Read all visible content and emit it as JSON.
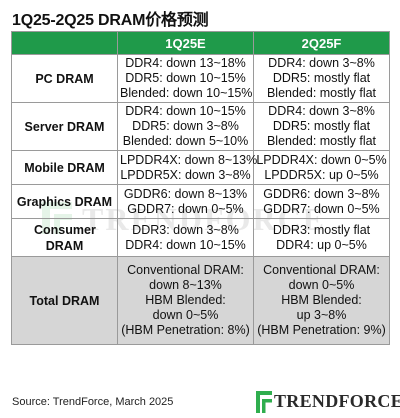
{
  "title": "1Q25-2Q25 DRAM价格预测",
  "columns": [
    "",
    "1Q25E",
    "2Q25F"
  ],
  "rows": [
    {
      "label": "PC DRAM",
      "q1": [
        "DDR4: down 13~18%",
        "DDR5: down 10~15%",
        "Blended: down 10~15%"
      ],
      "q2": [
        "DDR4: down 3~8%",
        "DDR5: mostly flat",
        "Blended: mostly flat"
      ]
    },
    {
      "label": "Server DRAM",
      "q1": [
        "DDR4: down 10~15%",
        "DDR5: down 3~8%",
        "Blended: down 5~10%"
      ],
      "q2": [
        "DDR4: down 3~8%",
        "DDR5: mostly flat",
        "Blended: mostly flat"
      ]
    },
    {
      "label": "Mobile DRAM",
      "q1": [
        "LPDDR4X: down 8~13%",
        "LPDDR5X: down 3~8%"
      ],
      "q2": [
        "LPDDR4X: down 0~5%",
        "LPDDR5X: up 0~5%"
      ]
    },
    {
      "label": "Graphics DRAM",
      "q1": [
        "GDDR6: down 8~13%",
        "GDDR7: down 0~5%"
      ],
      "q2": [
        "GDDR6: down 3~8%",
        "GDDR7: down 0~5%"
      ]
    },
    {
      "label": "Consumer DRAM",
      "q1": [
        "DDR3: down 3~8%",
        "DDR4: down 10~15%"
      ],
      "q2": [
        "DDR3: mostly flat",
        "DDR4: up 0~5%"
      ]
    },
    {
      "label": "Total DRAM",
      "q1": [
        "Conventional DRAM:",
        "down 8~13%",
        "HBM Blended:",
        "down 0~5%",
        "(HBM Penetration: 8%)"
      ],
      "q2": [
        "Conventional DRAM:",
        "down 0~5%",
        "HBM Blended:",
        "up 3~8%",
        "(HBM Penetration: 9%)"
      ]
    }
  ],
  "source": "Source: TrendForce, March 2025",
  "logo": {
    "text": "TRENDFORCE"
  },
  "watermark": {
    "text": "TRENDFORCE"
  },
  "colors": {
    "header_green": "#1f9a4a",
    "total_row_gray": "#d6d6d6",
    "logo_green": "#2fae4e"
  },
  "chart_data": {
    "type": "table",
    "title": "1Q25-2Q25 DRAM价格预测",
    "columns": [
      "",
      "1Q25E",
      "2Q25F"
    ],
    "rows": [
      [
        "PC DRAM",
        "DDR4: down 13~18% / DDR5: down 10~15% / Blended: down 10~15%",
        "DDR4: down 3~8% / DDR5: mostly flat / Blended: mostly flat"
      ],
      [
        "Server DRAM",
        "DDR4: down 10~15% / DDR5: down 3~8% / Blended: down 5~10%",
        "DDR4: down 3~8% / DDR5: mostly flat / Blended: mostly flat"
      ],
      [
        "Mobile DRAM",
        "LPDDR4X: down 8~13% / LPDDR5X: down 3~8%",
        "LPDDR4X: down 0~5% / LPDDR5X: up 0~5%"
      ],
      [
        "Graphics DRAM",
        "GDDR6: down 8~13% / GDDR7: down 0~5%",
        "GDDR6: down 3~8% / GDDR7: down 0~5%"
      ],
      [
        "Consumer DRAM",
        "DDR3: down 3~8% / DDR4: down 10~15%",
        "DDR3: mostly flat / DDR4: up 0~5%"
      ],
      [
        "Total DRAM",
        "Conventional DRAM: down 8~13% / HBM Blended: down 0~5% / (HBM Penetration: 8%)",
        "Conventional DRAM: down 0~5% / HBM Blended: up 3~8% / (HBM Penetration: 9%)"
      ]
    ],
    "source": "Source: TrendForce, March 2025"
  }
}
